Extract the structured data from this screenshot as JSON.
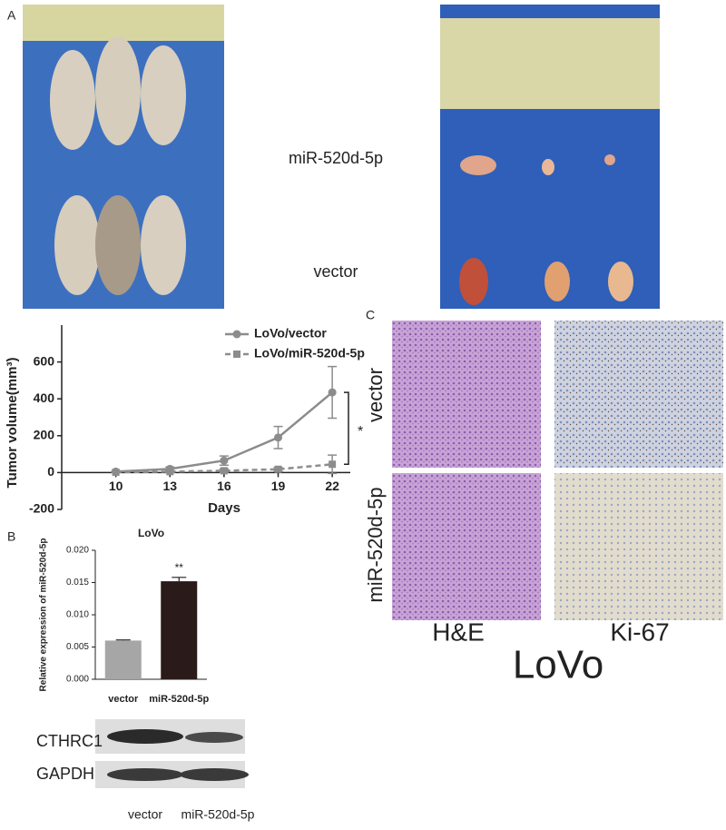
{
  "panels": {
    "a": "A",
    "b": "B",
    "c": "C"
  },
  "photos": {
    "tumor_labels": [
      "miR-520d-5p",
      "vector"
    ]
  },
  "chart_data": [
    {
      "type": "line",
      "x": [
        10,
        13,
        16,
        19,
        22
      ],
      "xlabel": "Days",
      "ylabel": "Tumor volume(mm³)",
      "xlim": [
        7,
        23
      ],
      "xticks": [
        10,
        13,
        16,
        19,
        22
      ],
      "ylim": [
        -200,
        800
      ],
      "yticks": [
        -200,
        0,
        200,
        400,
        600
      ],
      "legend": "upper left",
      "annotation": "*",
      "series": [
        {
          "name": "LoVo/vector",
          "color": "#8c8c8c",
          "dashed": false,
          "marker": "circle",
          "values": [
            5,
            20,
            65,
            190,
            435
          ],
          "errors": [
            5,
            10,
            25,
            60,
            140
          ]
        },
        {
          "name": "LoVo/miR-520d-5p",
          "color": "#8c8c8c",
          "dashed": true,
          "marker": "square",
          "values": [
            2,
            5,
            10,
            18,
            45
          ],
          "errors": [
            2,
            5,
            10,
            10,
            50
          ]
        }
      ]
    },
    {
      "type": "bar",
      "title": "LoVo",
      "ylabel": "Relative expression of miR-520d-5p",
      "categories": [
        "vector",
        "miR-520d-5p"
      ],
      "values": [
        0.006,
        0.0152
      ],
      "errors": [
        0.0001,
        0.0006
      ],
      "colors": [
        "#a6a6a6",
        "#2b1a1a"
      ],
      "annotation": "**",
      "ylim": [
        0,
        0.02
      ],
      "yticks": [
        {
          "value": 0,
          "label": "0.000"
        },
        {
          "value": 0.005,
          "label": "0.005"
        },
        {
          "value": 0.01,
          "label": "0.010"
        },
        {
          "value": 0.015,
          "label": "0.015"
        },
        {
          "value": 0.02,
          "label": "0.020"
        }
      ]
    }
  ],
  "western_blot": {
    "bands": [
      "CTHRC1",
      "GAPDH"
    ],
    "lanes": [
      "vector",
      "miR-520d-5p"
    ]
  },
  "histology": {
    "rows": [
      "vector",
      "miR-520d-5p"
    ],
    "columns": [
      "H&E",
      "Ki-67"
    ],
    "cell_line": "LoVo"
  }
}
